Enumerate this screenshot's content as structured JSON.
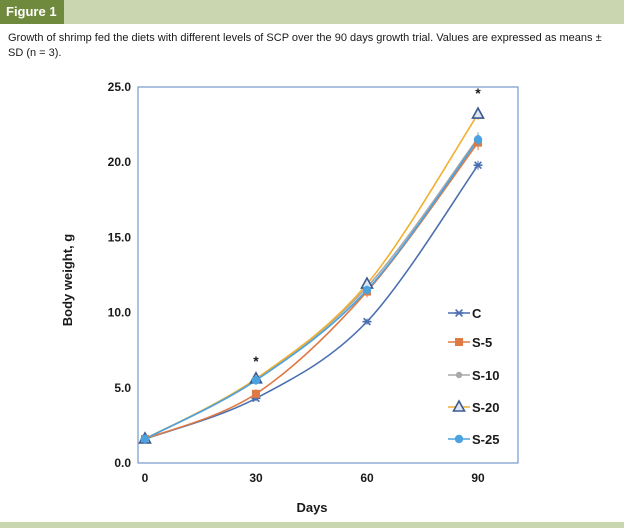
{
  "figure": {
    "tag": "Figure 1",
    "caption": "Growth of shrimp fed the diets with different levels of SCP over the 90 days growth trial. Values are expressed as means ± SD (n = 3)."
  },
  "chart_data": {
    "type": "line",
    "x": [
      0,
      30,
      60,
      90
    ],
    "xticks": [
      "0",
      "30",
      "60",
      "90"
    ],
    "yticks": [
      "0.0",
      "5.0",
      "10.0",
      "15.0",
      "20.0",
      "25.0"
    ],
    "xlabel": "Days",
    "ylabel": "Body weight, g",
    "xlim": [
      0,
      90
    ],
    "ylim": [
      0,
      25
    ],
    "grid": false,
    "legend_position": "right",
    "series": [
      {
        "name": "C",
        "values": [
          1.6,
          4.3,
          9.4,
          19.8
        ],
        "errors": [
          0.3,
          0.2,
          0.2,
          0.3
        ],
        "color": "#4a6fb0",
        "marker": "star"
      },
      {
        "name": "S-5",
        "values": [
          1.6,
          4.6,
          11.4,
          21.3
        ],
        "errors": [
          0.3,
          0.3,
          0.4,
          0.5
        ],
        "color": "#e07a45",
        "marker": "square"
      },
      {
        "name": "S-10",
        "values": [
          1.6,
          5.5,
          11.7,
          21.6
        ],
        "errors": [
          0.3,
          0.3,
          0.3,
          0.4
        ],
        "color": "#a9a9a9",
        "marker": "circle"
      },
      {
        "name": "S-20",
        "values": [
          1.6,
          5.6,
          11.9,
          23.2
        ],
        "errors": [
          0.3,
          0.3,
          0.3,
          0.4
        ],
        "color": "#f0b030",
        "marker": "triangle"
      },
      {
        "name": "S-25",
        "values": [
          1.6,
          5.5,
          11.5,
          21.5
        ],
        "errors": [
          0.3,
          0.3,
          0.3,
          0.4
        ],
        "color": "#4aa3df",
        "marker": "dot"
      }
    ],
    "annotations": [
      {
        "text": "*",
        "x": 30,
        "y": 5.8
      },
      {
        "text": "*",
        "x": 90,
        "y": 23.6
      }
    ]
  }
}
